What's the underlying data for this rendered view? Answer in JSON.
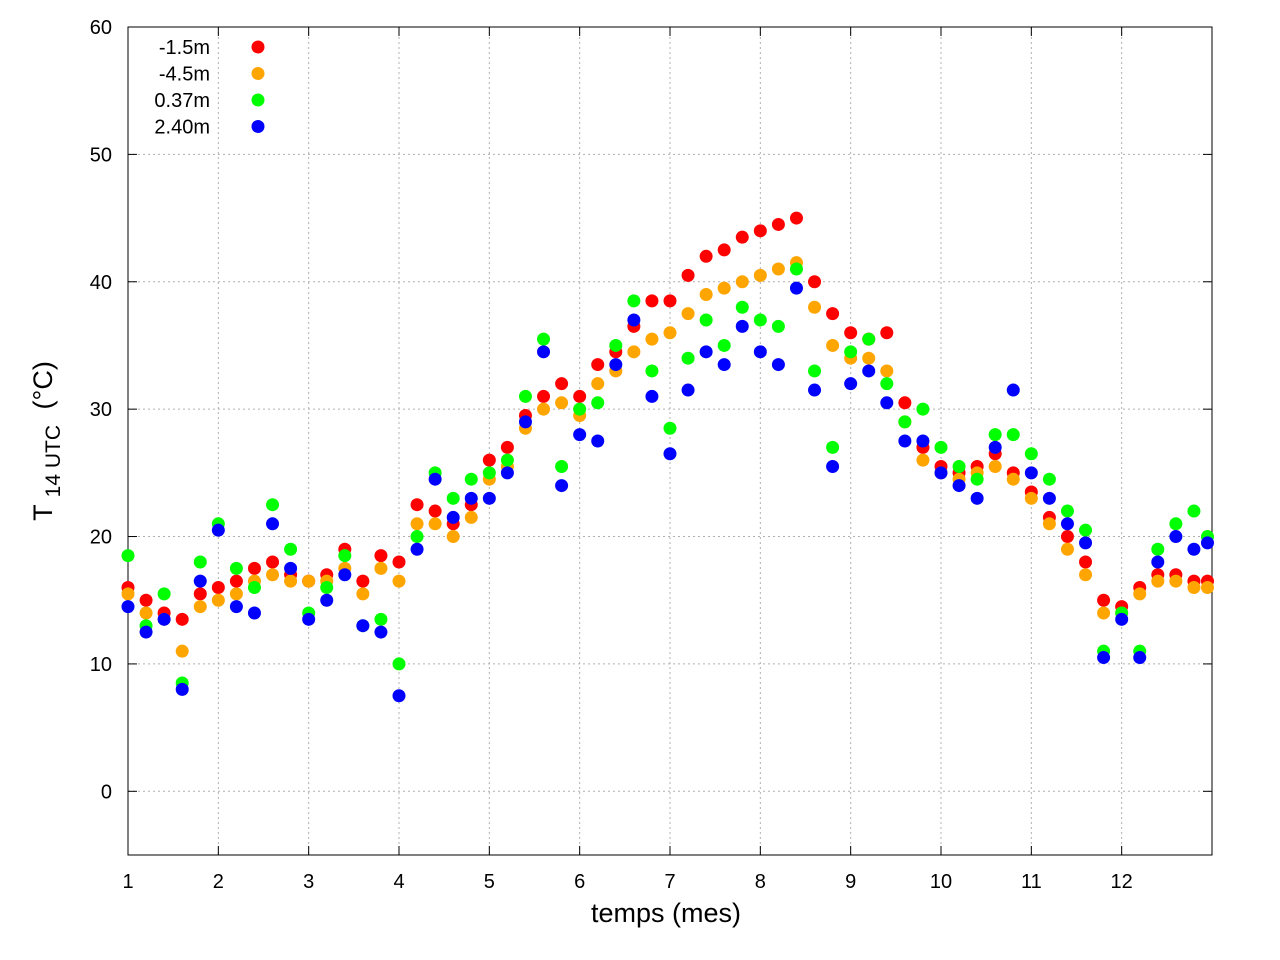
{
  "chart_data": {
    "type": "scatter",
    "title": "",
    "xlabel": "temps (mes)",
    "ylabel": {
      "main": "T",
      "subscript": "14 UTC",
      "unit": "(°C)"
    },
    "xlim": [
      1,
      13
    ],
    "ylim": [
      -5,
      60
    ],
    "xticks": [
      1,
      2,
      3,
      4,
      5,
      6,
      7,
      8,
      9,
      10,
      11,
      12
    ],
    "yticks": [
      0,
      10,
      20,
      30,
      40,
      50,
      60
    ],
    "grid": true,
    "legend_position": "top-left",
    "series": [
      {
        "name": "-1.5m",
        "color": "#ff0000",
        "x": [
          1.0,
          1.2,
          1.4,
          1.6,
          1.8,
          2.0,
          2.2,
          2.4,
          2.6,
          2.8,
          3.0,
          3.2,
          3.4,
          3.6,
          3.8,
          4.0,
          4.2,
          4.4,
          4.6,
          4.8,
          5.0,
          5.2,
          5.4,
          5.6,
          5.8,
          6.0,
          6.2,
          6.4,
          6.6,
          6.8,
          7.0,
          7.2,
          7.4,
          7.6,
          7.8,
          8.0,
          8.2,
          8.4,
          8.6,
          8.8,
          9.0,
          9.2,
          9.4,
          9.6,
          9.8,
          10.0,
          10.2,
          10.4,
          10.6,
          10.8,
          11.0,
          11.2,
          11.4,
          11.6,
          11.8,
          12.0,
          12.2,
          12.4,
          12.6,
          12.8,
          12.95
        ],
        "y": [
          16.0,
          15.0,
          14.0,
          13.5,
          15.5,
          16.0,
          16.5,
          17.5,
          18.0,
          17.0,
          16.5,
          17.0,
          19.0,
          16.5,
          18.5,
          18.0,
          22.5,
          22.0,
          21.0,
          22.5,
          26.0,
          27.0,
          29.5,
          31.0,
          32.0,
          31.0,
          33.5,
          34.5,
          36.5,
          38.5,
          38.5,
          40.5,
          42.0,
          42.5,
          43.5,
          44.0,
          44.5,
          45.0,
          40.0,
          37.5,
          36.0,
          35.5,
          36.0,
          30.5,
          27.0,
          25.5,
          25.0,
          25.5,
          26.5,
          25.0,
          23.5,
          21.5,
          20.0,
          18.0,
          15.0,
          14.5,
          16.0,
          17.0,
          17.0,
          16.5,
          16.5
        ]
      },
      {
        "name": "-4.5m",
        "color": "#ffa500",
        "x": [
          1.0,
          1.2,
          1.4,
          1.6,
          1.8,
          2.0,
          2.2,
          2.4,
          2.6,
          2.8,
          3.0,
          3.2,
          3.4,
          3.6,
          3.8,
          4.0,
          4.2,
          4.4,
          4.6,
          4.8,
          5.0,
          5.2,
          5.4,
          5.6,
          5.8,
          6.0,
          6.2,
          6.4,
          6.6,
          6.8,
          7.0,
          7.2,
          7.4,
          7.6,
          7.8,
          8.0,
          8.2,
          8.4,
          8.6,
          8.8,
          9.0,
          9.2,
          9.4,
          9.6,
          9.8,
          10.0,
          10.2,
          10.4,
          10.6,
          10.8,
          11.0,
          11.2,
          11.4,
          11.6,
          11.8,
          12.0,
          12.2,
          12.4,
          12.6,
          12.8,
          12.95
        ],
        "y": [
          15.5,
          14.0,
          13.5,
          11.0,
          14.5,
          15.0,
          15.5,
          16.5,
          17.0,
          16.5,
          16.5,
          16.5,
          17.5,
          15.5,
          17.5,
          16.5,
          21.0,
          21.0,
          20.0,
          21.5,
          24.5,
          25.5,
          28.5,
          30.0,
          30.5,
          29.5,
          32.0,
          33.0,
          34.5,
          35.5,
          36.0,
          37.5,
          39.0,
          39.5,
          40.0,
          40.5,
          41.0,
          41.5,
          38.0,
          35.0,
          34.0,
          34.0,
          33.0,
          29.0,
          26.0,
          25.0,
          24.5,
          25.0,
          25.5,
          24.5,
          23.0,
          21.0,
          19.0,
          17.0,
          14.0,
          14.0,
          15.5,
          16.5,
          16.5,
          16.0,
          16.0
        ]
      },
      {
        "name": "0.37m",
        "color": "#00ff00",
        "x": [
          1.0,
          1.2,
          1.4,
          1.6,
          1.8,
          2.0,
          2.2,
          2.4,
          2.6,
          2.8,
          3.0,
          3.2,
          3.4,
          3.6,
          3.8,
          4.0,
          4.2,
          4.4,
          4.6,
          4.8,
          5.0,
          5.2,
          5.4,
          5.6,
          5.8,
          6.0,
          6.2,
          6.4,
          6.6,
          6.8,
          7.0,
          7.2,
          7.4,
          7.6,
          7.8,
          8.0,
          8.2,
          8.4,
          8.6,
          8.8,
          9.0,
          9.2,
          9.4,
          9.6,
          9.8,
          10.0,
          10.2,
          10.4,
          10.6,
          10.8,
          11.0,
          11.2,
          11.4,
          11.6,
          11.8,
          12.0,
          12.2,
          12.4,
          12.6,
          12.8,
          12.95
        ],
        "y": [
          18.5,
          13.0,
          15.5,
          8.5,
          18.0,
          21.0,
          17.5,
          16.0,
          22.5,
          19.0,
          14.0,
          16.0,
          18.5,
          13.0,
          13.5,
          10.0,
          20.0,
          25.0,
          23.0,
          24.5,
          25.0,
          26.0,
          31.0,
          35.5,
          25.5,
          30.0,
          30.5,
          35.0,
          38.5,
          33.0,
          28.5,
          34.0,
          37.0,
          35.0,
          38.0,
          37.0,
          36.5,
          41.0,
          33.0,
          27.0,
          34.5,
          35.5,
          32.0,
          29.0,
          30.0,
          27.0,
          25.5,
          24.5,
          28.0,
          28.0,
          26.5,
          24.5,
          22.0,
          20.5,
          11.0,
          14.0,
          11.0,
          19.0,
          21.0,
          22.0,
          20.0
        ]
      },
      {
        "name": "2.40m",
        "color": "#0000ff",
        "x": [
          1.0,
          1.2,
          1.4,
          1.6,
          1.8,
          2.0,
          2.2,
          2.4,
          2.6,
          2.8,
          3.0,
          3.2,
          3.4,
          3.6,
          3.8,
          4.0,
          4.2,
          4.4,
          4.6,
          4.8,
          5.0,
          5.2,
          5.4,
          5.6,
          5.8,
          6.0,
          6.2,
          6.4,
          6.6,
          6.8,
          7.0,
          7.2,
          7.4,
          7.6,
          7.8,
          8.0,
          8.2,
          8.4,
          8.6,
          8.8,
          9.0,
          9.2,
          9.4,
          9.6,
          9.8,
          10.0,
          10.2,
          10.4,
          10.6,
          10.8,
          11.0,
          11.2,
          11.4,
          11.6,
          11.8,
          12.0,
          12.2,
          12.4,
          12.6,
          12.8,
          12.95
        ],
        "y": [
          14.5,
          12.5,
          13.5,
          8.0,
          16.5,
          20.5,
          14.5,
          14.0,
          21.0,
          17.5,
          13.5,
          15.0,
          17.0,
          13.0,
          12.5,
          7.5,
          19.0,
          24.5,
          21.5,
          23.0,
          23.0,
          25.0,
          29.0,
          34.5,
          24.0,
          28.0,
          27.5,
          33.5,
          37.0,
          31.0,
          26.5,
          31.5,
          34.5,
          33.5,
          36.5,
          34.5,
          33.5,
          39.5,
          31.5,
          25.5,
          32.0,
          33.0,
          30.5,
          27.5,
          27.5,
          25.0,
          24.0,
          23.0,
          27.0,
          31.5,
          25.0,
          23.0,
          21.0,
          19.5,
          10.5,
          13.5,
          10.5,
          18.0,
          20.0,
          19.0,
          19.5
        ]
      }
    ]
  }
}
